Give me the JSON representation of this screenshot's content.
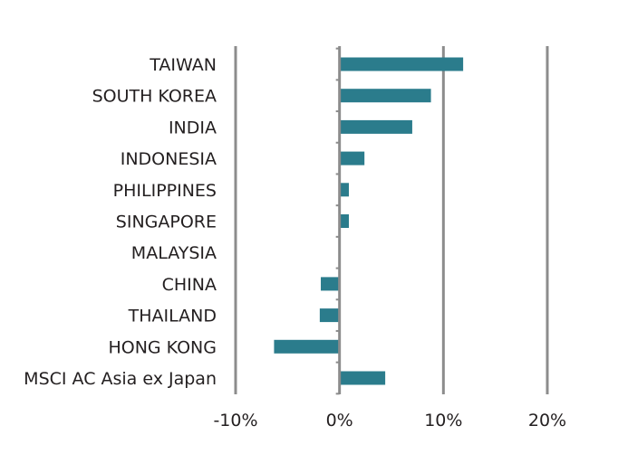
{
  "chart_data": {
    "type": "bar",
    "orientation": "horizontal",
    "categories": [
      "TAIWAN",
      "SOUTH KOREA",
      "INDIA",
      "INDONESIA",
      "PHILIPPINES",
      "SINGAPORE",
      "MALAYSIA",
      "CHINA",
      "THAILAND",
      "HONG KONG",
      "MSCI AC Asia ex Japan"
    ],
    "values": [
      11.9,
      8.8,
      7.0,
      2.4,
      0.9,
      0.9,
      0.0,
      -1.8,
      -1.9,
      -6.3,
      4.4
    ],
    "xlim": [
      -10,
      20
    ],
    "xticks": [
      -10,
      0,
      10,
      20
    ],
    "xtick_labels": [
      "-10%",
      "0%",
      "10%",
      "20%"
    ],
    "grid": "vertical",
    "colors": {
      "bar": "#2b7c8c",
      "grid": "#8c8c8c",
      "text": "#231f20"
    }
  }
}
